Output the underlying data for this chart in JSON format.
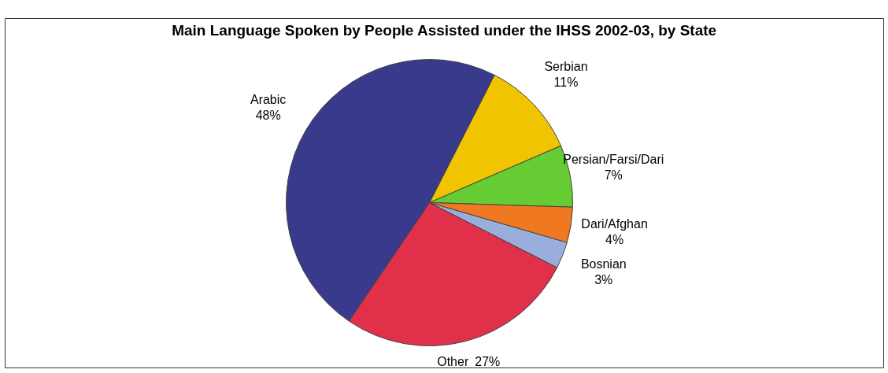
{
  "chart_data": {
    "type": "pie",
    "title": "Main Language Spoken by People Assisted under the IHSS 2002-03, by State",
    "categories": [
      "Serbian",
      "Persian/Farsi/Dari",
      "Dari/Afghan",
      "Bosnian",
      "Other",
      "Arabic"
    ],
    "values": [
      11,
      7,
      4,
      3,
      27,
      48
    ],
    "colors": [
      "#f0c400",
      "#66cc33",
      "#f07820",
      "#99aedb",
      "#e0304a",
      "#3a3a8c"
    ],
    "value_labels": [
      "11%",
      "7%",
      "4%",
      "3%",
      "27%",
      "48%"
    ]
  }
}
